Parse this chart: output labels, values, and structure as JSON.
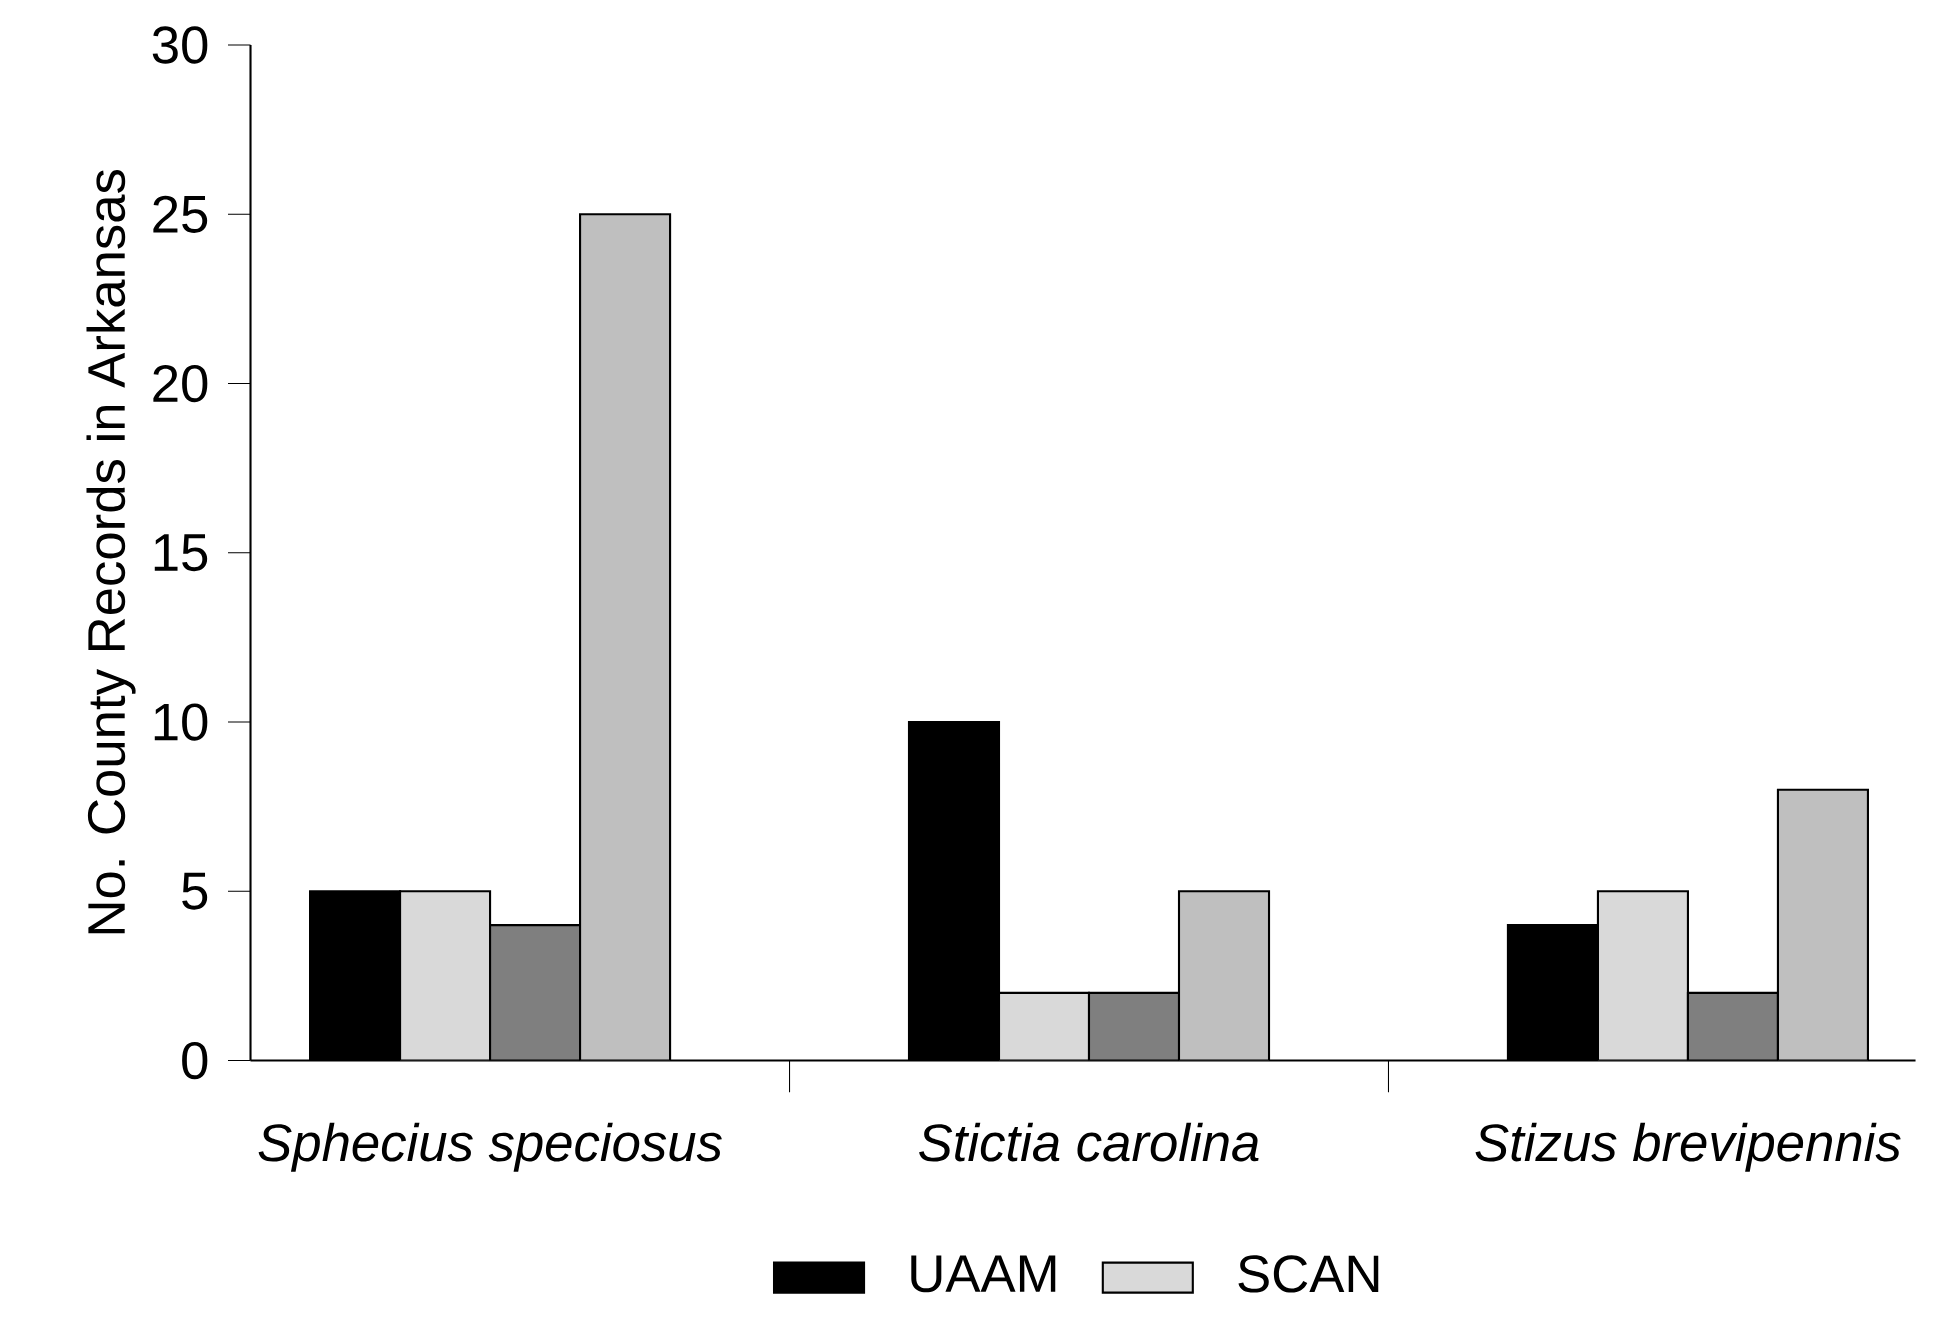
{
  "chart_data": {
    "type": "bar",
    "ylabel": "No. County Records in Arkansas",
    "categories": [
      "Sphecius speciosus",
      "Stictia carolina",
      "Stizus brevipennis"
    ],
    "series": [
      {
        "name": "UAAM",
        "color": "#000000",
        "values": [
          5,
          10,
          4
        ]
      },
      {
        "name": "SCAN",
        "color": "#d9d9d9",
        "values": [
          5,
          2,
          5
        ]
      },
      {
        "color": "#7f7f7f",
        "values": [
          4,
          2,
          2
        ]
      },
      {
        "color": "#bfbfbf",
        "values": [
          25,
          5,
          8
        ]
      }
    ],
    "ylim": [
      0,
      30
    ],
    "yticks": [
      0,
      5,
      10,
      15,
      20,
      25,
      30
    ],
    "grid": false,
    "legend": "bottom"
  }
}
